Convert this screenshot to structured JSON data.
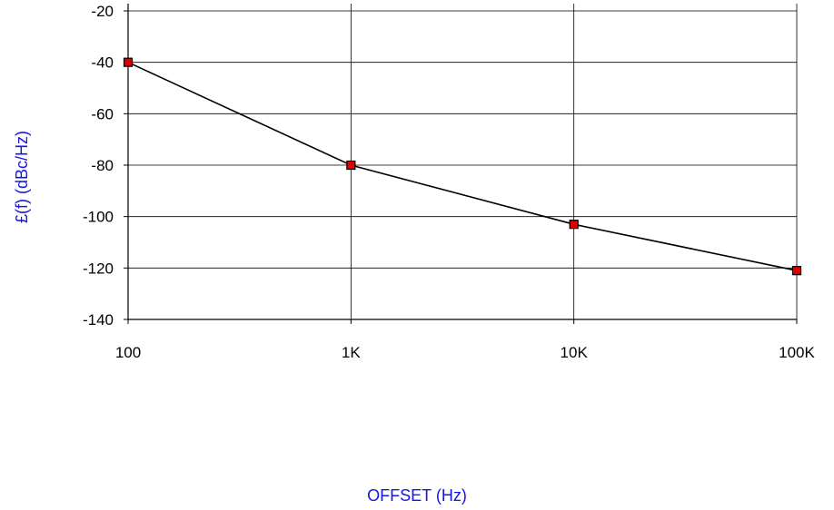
{
  "chart_data": {
    "type": "line",
    "title": "",
    "xlabel": "OFFSET (Hz)",
    "ylabel": "£(f) (dBc/Hz)",
    "x_scale": "log",
    "xlim": [
      100,
      100000
    ],
    "ylim": [
      -140,
      -20
    ],
    "x_ticks": [
      {
        "value": 100,
        "label": "100"
      },
      {
        "value": 1000,
        "label": "1K"
      },
      {
        "value": 10000,
        "label": "10K"
      },
      {
        "value": 100000,
        "label": "100K"
      }
    ],
    "y_ticks": [
      {
        "value": -20,
        "label": "-20"
      },
      {
        "value": -40,
        "label": "-40"
      },
      {
        "value": -60,
        "label": "-60"
      },
      {
        "value": -80,
        "label": "-80"
      },
      {
        "value": -100,
        "label": "-100"
      },
      {
        "value": -120,
        "label": "-120"
      },
      {
        "value": -140,
        "label": "-140"
      }
    ],
    "grid": true,
    "series": [
      {
        "x": [
          100,
          1000,
          10000,
          100000
        ],
        "values": [
          -40,
          -80,
          -103,
          -121
        ],
        "line_color": "#000000",
        "marker_color": "#e00000"
      }
    ],
    "label_color": "#1515e6"
  }
}
